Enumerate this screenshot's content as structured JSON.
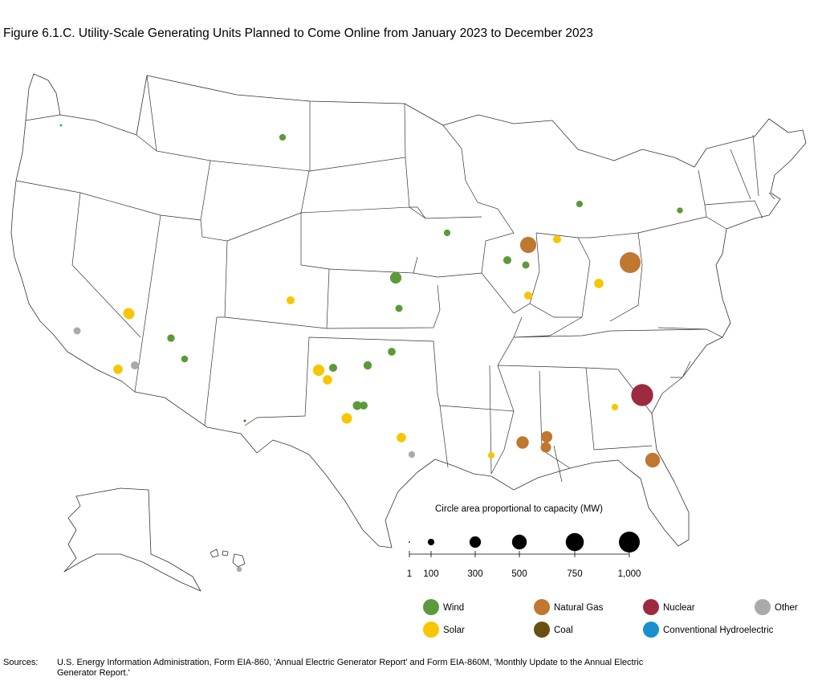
{
  "title": "Figure 6.1.C. Utility-Scale Generating Units Planned to Come Online from January 2023 to December 2023",
  "size_legend": {
    "caption": "Circle area proportional to capacity (MW)",
    "ticks": [
      {
        "label": "1",
        "mw": 1
      },
      {
        "label": "100",
        "mw": 100
      },
      {
        "label": "300",
        "mw": 300
      },
      {
        "label": "500",
        "mw": 500
      },
      {
        "label": "750",
        "mw": 750
      },
      {
        "label": "1,000",
        "mw": 1000
      }
    ]
  },
  "fuel_legend": [
    {
      "key": "wind",
      "label": "Wind",
      "color": "#5b9a3a"
    },
    {
      "key": "gas",
      "label": "Natural Gas",
      "color": "#c07730"
    },
    {
      "key": "nuclear",
      "label": "Nuclear",
      "color": "#9e2a3f"
    },
    {
      "key": "other",
      "label": "Other",
      "color": "#aaaaaa"
    },
    {
      "key": "solar",
      "label": "Solar",
      "color": "#f7c600"
    },
    {
      "key": "coal",
      "label": "Coal",
      "color": "#6b4f12"
    },
    {
      "key": "hydro",
      "label": "Conventional Hydroelectric",
      "color": "#1a8fd0"
    }
  ],
  "sources": {
    "label": "Sources:",
    "text": "U.S. Energy Information Administration, Form EIA-860, 'Annual Electric Generator Report' and Form EIA-860M, 'Monthly Update to the Annual Electric Generator Report.'"
  },
  "plants": [
    {
      "state": "GA",
      "type": "nuclear",
      "mw": 1110
    },
    {
      "state": "OH",
      "type": "gas",
      "mw": 1000
    },
    {
      "state": "IL",
      "type": "gas",
      "mw": 600
    },
    {
      "state": "FL",
      "type": "gas",
      "mw": 500
    },
    {
      "state": "LA",
      "type": "gas",
      "mw": 350
    },
    {
      "state": "LA",
      "type": "gas",
      "mw": 300
    },
    {
      "state": "LA",
      "type": "gas",
      "mw": 250
    },
    {
      "state": "KS",
      "type": "wind",
      "mw": 300
    },
    {
      "state": "TX",
      "type": "wind",
      "mw": 180
    },
    {
      "state": "TX",
      "type": "wind",
      "mw": 160
    },
    {
      "state": "TX",
      "type": "wind",
      "mw": 150
    },
    {
      "state": "TX",
      "type": "wind",
      "mw": 140
    },
    {
      "state": "OK",
      "type": "wind",
      "mw": 150
    },
    {
      "state": "OK",
      "type": "wind",
      "mw": 120
    },
    {
      "state": "AZ",
      "type": "wind",
      "mw": 130
    },
    {
      "state": "NM",
      "type": "wind",
      "mw": 110
    },
    {
      "state": "IL",
      "type": "wind",
      "mw": 150
    },
    {
      "state": "IL",
      "type": "wind",
      "mw": 120
    },
    {
      "state": "IA",
      "type": "wind",
      "mw": 100
    },
    {
      "state": "MI",
      "type": "wind",
      "mw": 100
    },
    {
      "state": "ND",
      "type": "wind",
      "mw": 100
    },
    {
      "state": "NY",
      "type": "wind",
      "mw": 80
    },
    {
      "state": "TX",
      "type": "solar",
      "mw": 300
    },
    {
      "state": "TX",
      "type": "solar",
      "mw": 250
    },
    {
      "state": "TX",
      "type": "solar",
      "mw": 200
    },
    {
      "state": "TX",
      "type": "solar",
      "mw": 200
    },
    {
      "state": "CA",
      "type": "solar",
      "mw": 250
    },
    {
      "state": "CA",
      "type": "solar",
      "mw": 200
    },
    {
      "state": "NV",
      "type": "solar",
      "mw": 250
    },
    {
      "state": "OH",
      "type": "solar",
      "mw": 200
    },
    {
      "state": "IL",
      "type": "solar",
      "mw": 150
    },
    {
      "state": "IN",
      "type": "solar",
      "mw": 150
    },
    {
      "state": "CO",
      "type": "solar",
      "mw": 150
    },
    {
      "state": "GA",
      "type": "solar",
      "mw": 100
    },
    {
      "state": "MS",
      "type": "solar",
      "mw": 100
    },
    {
      "state": "CA",
      "type": "other",
      "mw": 150
    },
    {
      "state": "CA",
      "type": "other",
      "mw": 120
    },
    {
      "state": "TX",
      "type": "other",
      "mw": 100
    },
    {
      "state": "HI",
      "type": "other",
      "mw": 60
    },
    {
      "state": "WA",
      "type": "hydro",
      "mw": 10
    },
    {
      "state": "NM",
      "type": "coal",
      "mw": 0
    }
  ]
}
